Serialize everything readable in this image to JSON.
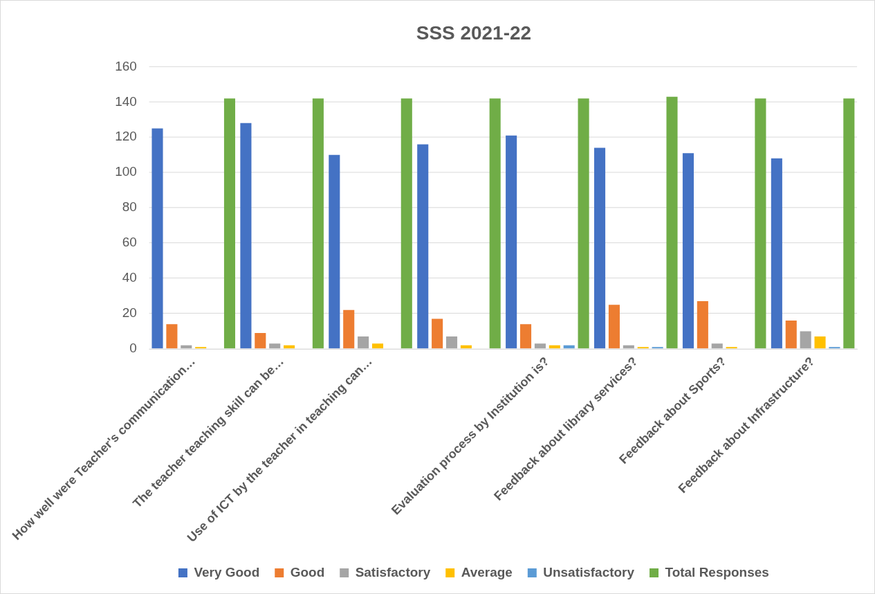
{
  "chart_data": {
    "type": "bar",
    "title": "SSS 2021-22",
    "categories": [
      "How well were Teacher's communication…",
      "The teacher teaching skill can be…",
      "Use of ICT by the teacher in teaching can…",
      null,
      "Evaluation process by Institution is?",
      "Feedback about library services?",
      "Feedback about Sports?",
      "Feedback about Infrastructure?"
    ],
    "series": [
      {
        "name": "Very Good",
        "color": "#4472c4",
        "values": [
          125,
          128,
          110,
          116,
          121,
          114,
          111,
          108
        ]
      },
      {
        "name": "Good",
        "color": "#ed7d31",
        "values": [
          14,
          9,
          22,
          17,
          14,
          25,
          27,
          16
        ]
      },
      {
        "name": "Satisfactory",
        "color": "#a5a5a5",
        "values": [
          2,
          3,
          7,
          7,
          3,
          2,
          3,
          10
        ]
      },
      {
        "name": "Average",
        "color": "#ffc000",
        "values": [
          1,
          2,
          3,
          2,
          2,
          1,
          1,
          7
        ]
      },
      {
        "name": "Unsatisfactory",
        "color": "#5b9bd5",
        "values": [
          0,
          0,
          0,
          0,
          2,
          1,
          0,
          1
        ]
      },
      {
        "name": "Total Responses",
        "color": "#70ad47",
        "values": [
          142,
          142,
          142,
          142,
          142,
          143,
          142,
          142
        ]
      }
    ],
    "ylim": [
      0,
      160
    ],
    "yticks": [
      0,
      20,
      40,
      60,
      80,
      100,
      120,
      140,
      160
    ],
    "grid": "y",
    "legend": "bottom"
  }
}
